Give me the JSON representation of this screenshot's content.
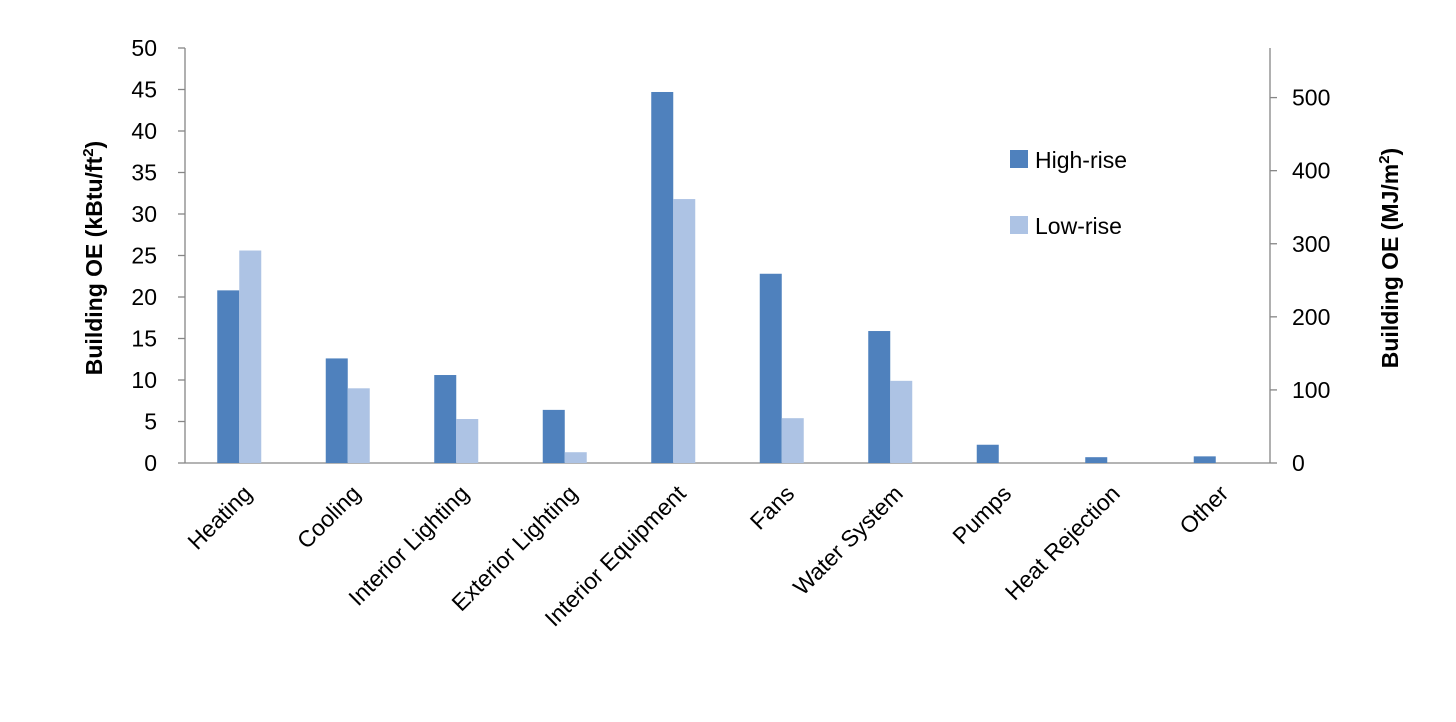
{
  "chart_data": {
    "type": "bar",
    "categories": [
      "Heating",
      "Cooling",
      "Interior Lighting",
      "Exterior Lighting",
      "Interior Equipment",
      "Fans",
      "Water System",
      "Pumps",
      "Heat Rejection",
      "Other"
    ],
    "series": [
      {
        "name": "High-rise",
        "color": "#4f81bd",
        "values": [
          20.8,
          12.6,
          10.6,
          6.4,
          44.7,
          22.8,
          15.9,
          2.2,
          0.7,
          0.8
        ]
      },
      {
        "name": "Low-rise",
        "color": "#adc3e4",
        "values": [
          25.6,
          9.0,
          5.3,
          1.3,
          31.8,
          5.4,
          9.9,
          0,
          0,
          0
        ]
      }
    ],
    "ylabel": "Building OE (kBtu/ft²)",
    "ylabel_parts": {
      "main": "Building OE (kBtu/ft",
      "sup": "2",
      "end": ")"
    },
    "ylim": [
      0,
      50
    ],
    "yticks": [
      0,
      5,
      10,
      15,
      20,
      25,
      30,
      35,
      40,
      45,
      50
    ],
    "y2label": "Building OE (MJ/m²)",
    "y2label_parts": {
      "main": "Building OE (MJ/m",
      "sup": "2",
      "end": ")"
    },
    "y2ticks": [
      0,
      100,
      200,
      300,
      400,
      500
    ],
    "y2_per_y": 11.357,
    "legend_position": "top-right",
    "grid": false
  }
}
